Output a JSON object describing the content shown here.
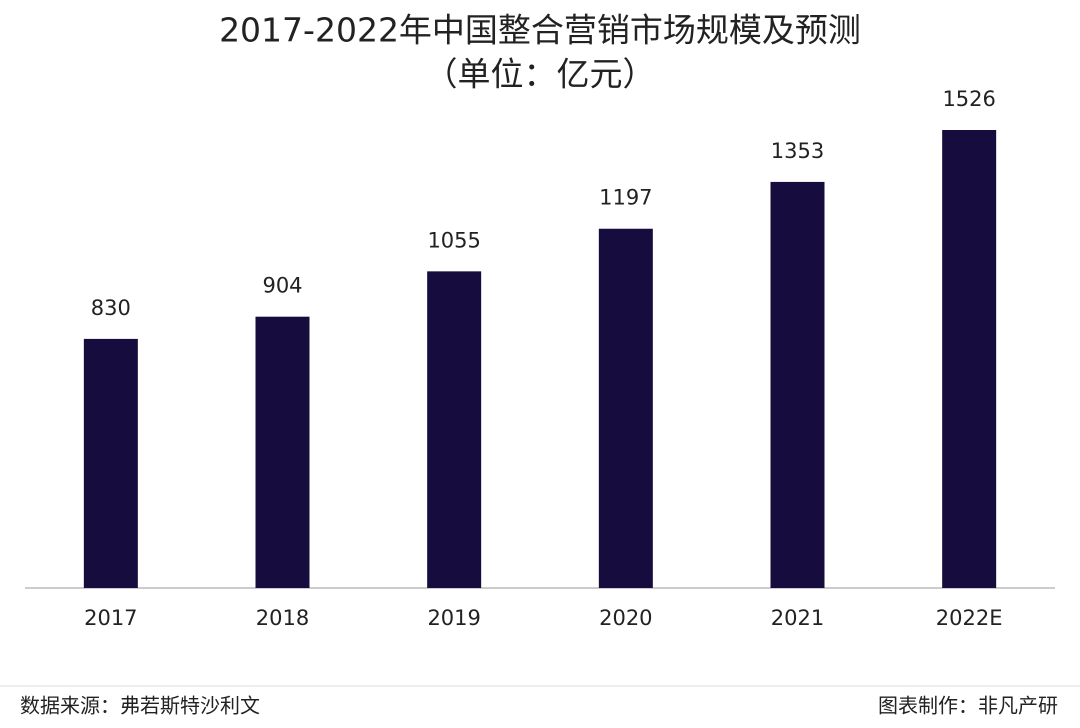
{
  "chart_data": {
    "type": "bar",
    "title": "2017-2022年中国整合营销市场规模及预测",
    "subtitle": "（单位：亿元）",
    "categories": [
      "2017",
      "2018",
      "2019",
      "2020",
      "2021",
      "2022E"
    ],
    "values": [
      830,
      904,
      1055,
      1197,
      1353,
      1526
    ],
    "color": "#170c3e",
    "source": "数据来源：弗若斯特沙利文",
    "credit": "图表制作：非凡产研"
  }
}
